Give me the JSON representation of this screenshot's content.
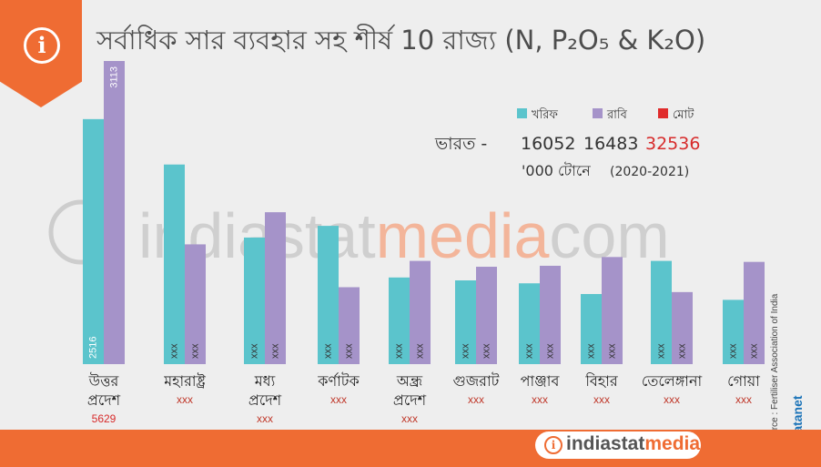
{
  "title": "সর্বাধিক সার ব্যবহার সহ শীর্ষ 10 রাজ্য (N, P₂O₅ & K₂O)",
  "info_icon": "i",
  "legend": [
    {
      "label": "খরিফ",
      "color": "#5bc4cc"
    },
    {
      "label": "রাবি",
      "color": "#a593c9"
    },
    {
      "label": "মোট",
      "color": "#e02b2b"
    }
  ],
  "india": {
    "label": "ভারত -",
    "kharif": "16052",
    "rabi": "16483",
    "total": "32536",
    "unit": "'000 টোনে",
    "period": "(2020-2021)"
  },
  "watermark": {
    "part1": "indiastat",
    "part2": "media",
    "part3": "com"
  },
  "source": "Source : Fertiliser Association of India",
  "side_logo": "© Datanet",
  "footer": {
    "brand_a": "indiastat",
    "brand_b": "media",
    "icon": "i"
  },
  "chart_data": {
    "type": "bar",
    "categories": [
      "উত্তর প্রদেশ",
      "মহারাষ্ট্র",
      "মধ্য প্রদেশ",
      "কর্ণাটক",
      "অন্ধ্র প্রদেশ",
      "গুজরাট",
      "পাঞ্জাব",
      "বিহার",
      "তেলেঙ্গানা",
      "গোয়া"
    ],
    "series": [
      {
        "name": "খরিফ",
        "values": [
          2516,
          2050,
          1300,
          1420,
          890,
          860,
          830,
          720,
          1060,
          660
        ],
        "labels": [
          "2516",
          "xxx",
          "xxx",
          "xxx",
          "xxx",
          "xxx",
          "xxx",
          "xxx",
          "xxx",
          "xxx"
        ]
      },
      {
        "name": "রাবি",
        "values": [
          3113,
          1230,
          1560,
          790,
          1060,
          1000,
          1010,
          1100,
          740,
          1050
        ],
        "labels": [
          "3113",
          "xxx",
          "xxx",
          "xxx",
          "xxx",
          "xxx",
          "xxx",
          "xxx",
          "xxx",
          "xxx"
        ]
      }
    ],
    "totals": [
      "5629",
      "xxx",
      "xxx",
      "xxx",
      "xxx",
      "xxx",
      "xxx",
      "xxx",
      "xxx",
      "xxx"
    ],
    "ylim": [
      0,
      3113
    ]
  }
}
